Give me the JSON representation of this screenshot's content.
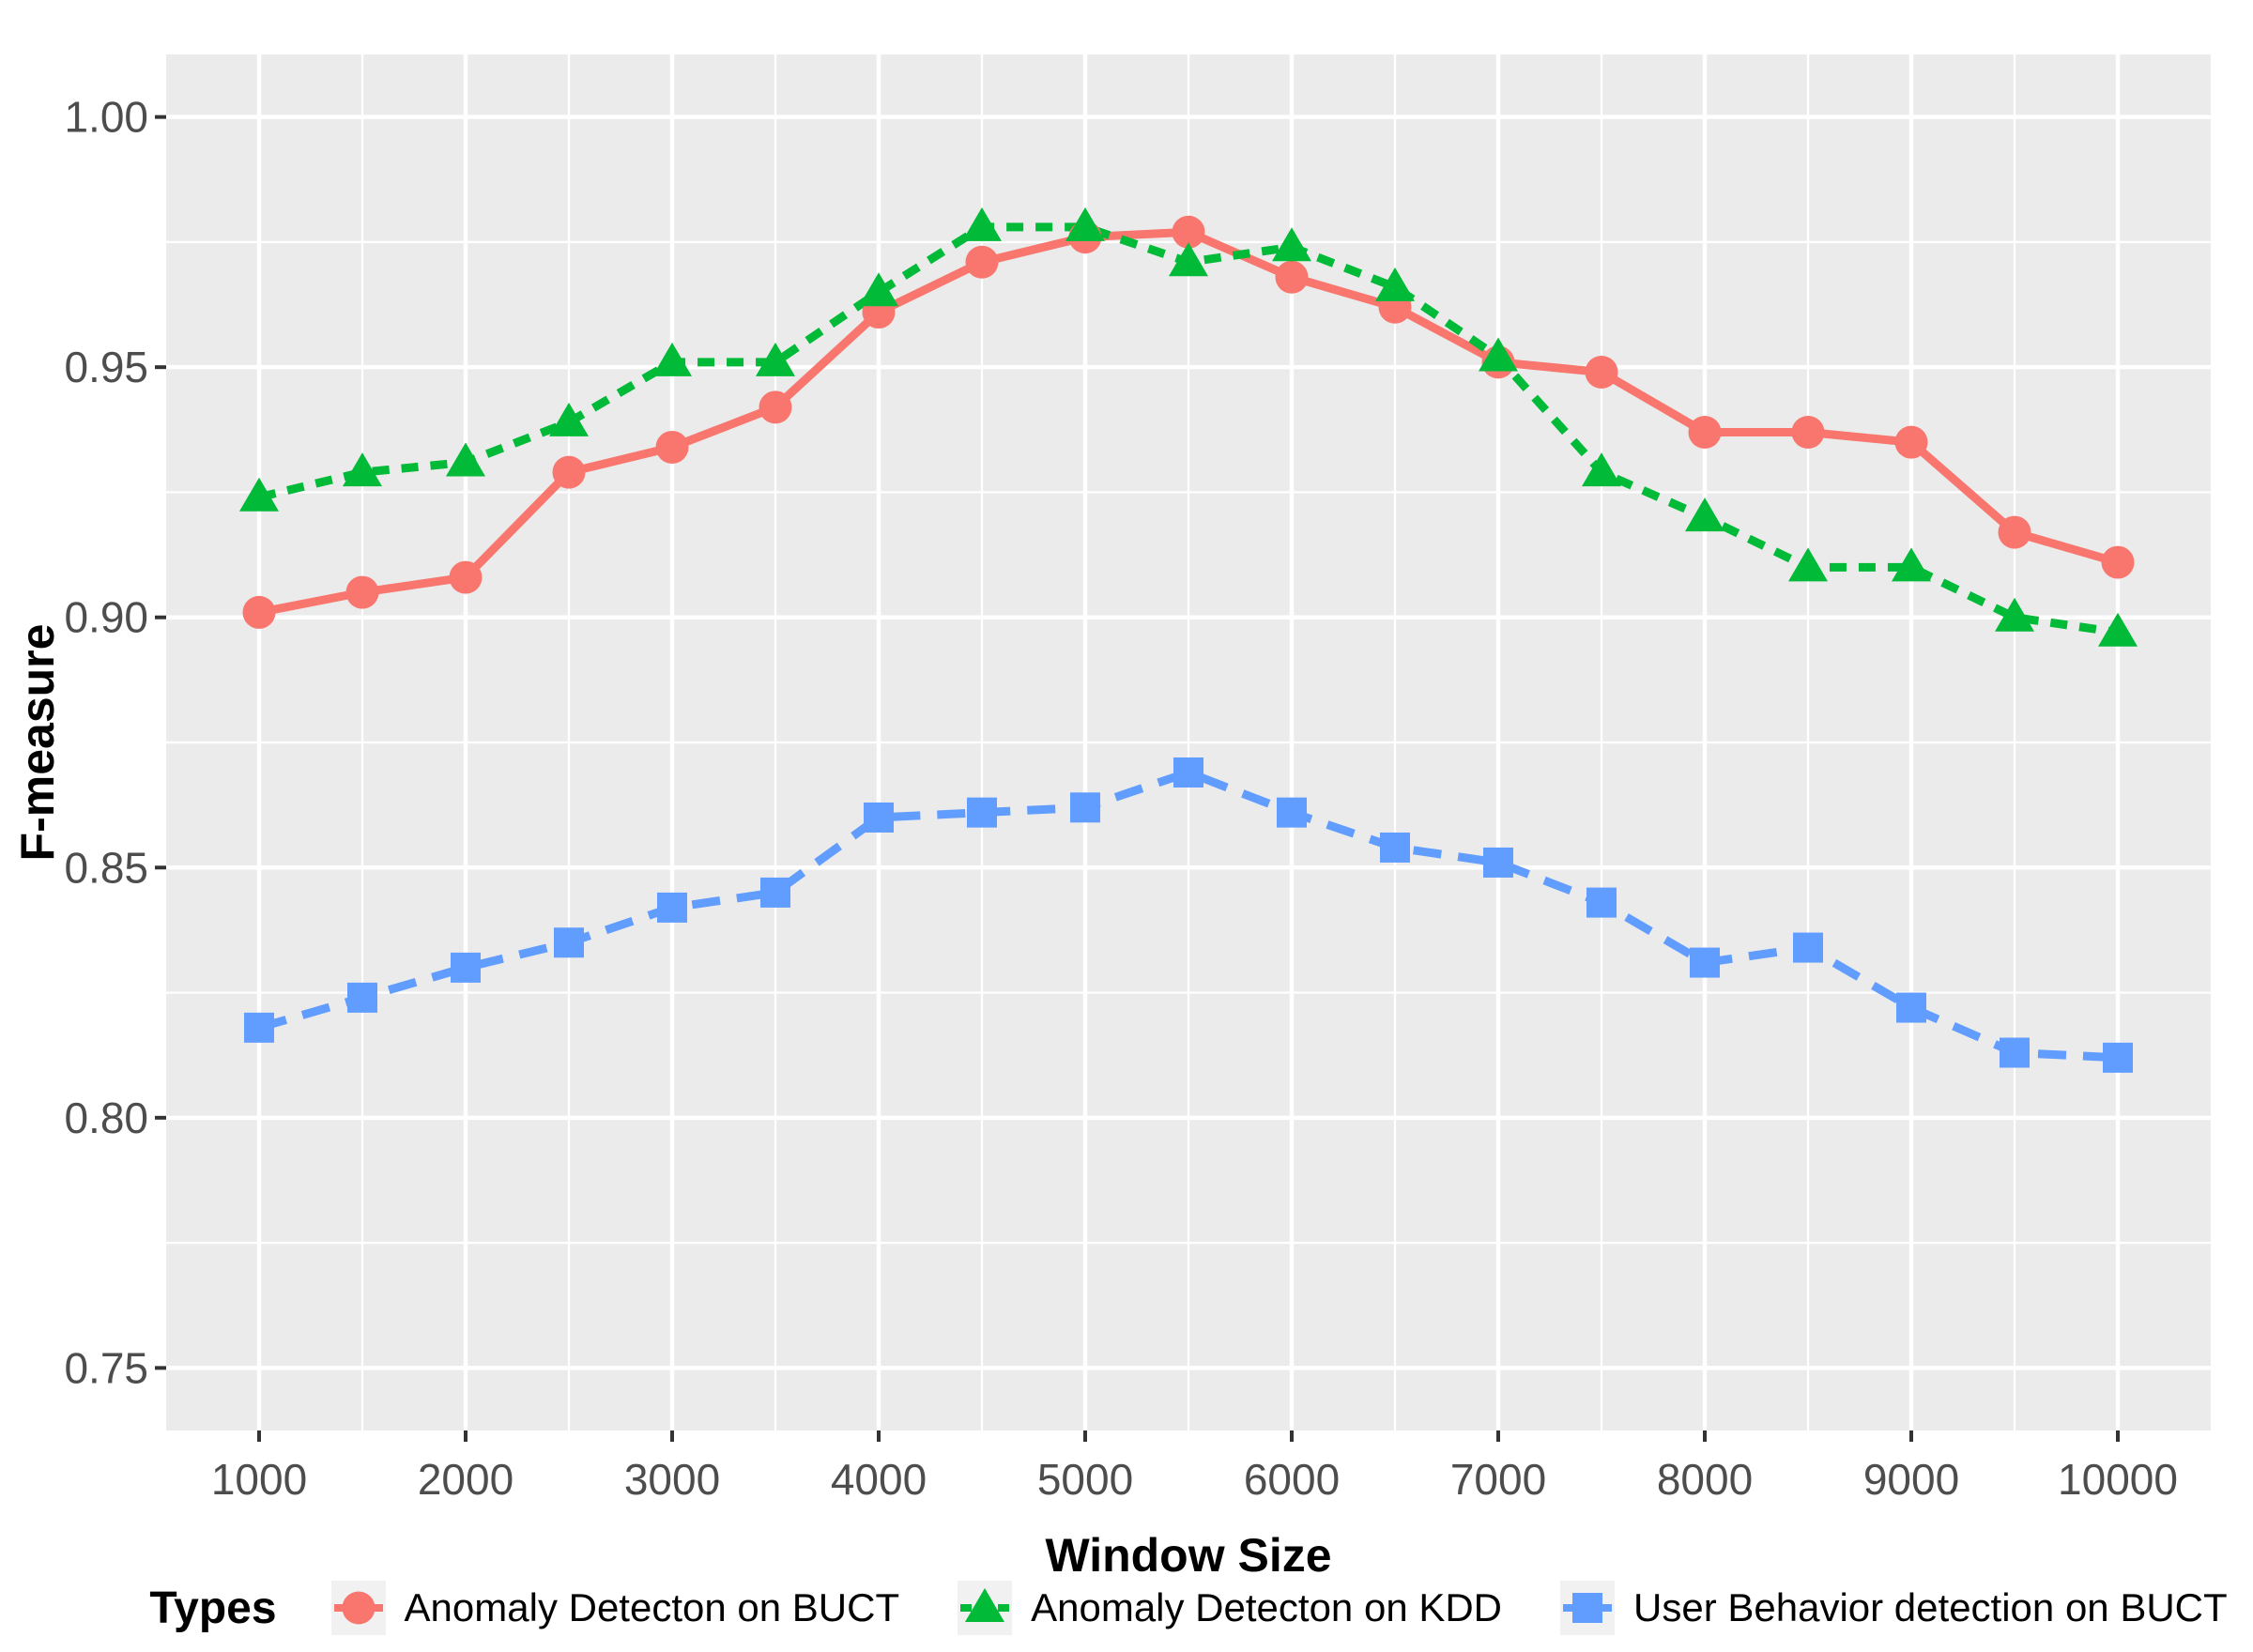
{
  "figure": {
    "x_axis": {
      "title": "Window Size",
      "tick_labels": [
        "1000",
        "2000",
        "3000",
        "4000",
        "5000",
        "6000",
        "7000",
        "8000",
        "9000",
        "10000"
      ],
      "tick_values": [
        1000,
        2000,
        3000,
        4000,
        5000,
        6000,
        7000,
        8000,
        9000,
        10000
      ],
      "minor_tick_values": [
        1500,
        2500,
        3500,
        4500,
        5500,
        6500,
        7500,
        8500,
        9500
      ]
    },
    "y_axis": {
      "title": "F-measure",
      "tick_labels": [
        "0.75",
        "0.80",
        "0.85",
        "0.90",
        "0.95",
        "1.00"
      ],
      "tick_values": [
        0.75,
        0.8,
        0.85,
        0.9,
        0.95,
        1.0
      ],
      "minor_tick_values": [
        0.775,
        0.825,
        0.875,
        0.925,
        0.975
      ]
    },
    "legend": {
      "title": "Types",
      "entries": [
        "Anomaly Detecton on BUCT",
        "Anomaly Detecton on KDD",
        "User Behavior detection on BUCT"
      ]
    }
  },
  "chart_data": {
    "type": "line",
    "title": "",
    "xlabel": "Window Size",
    "ylabel": "F-measure",
    "x": [
      1000,
      1500,
      2000,
      2500,
      3000,
      3500,
      4000,
      4500,
      5000,
      5500,
      6000,
      6500,
      7000,
      7500,
      8000,
      8500,
      9000,
      9500,
      10000
    ],
    "series": [
      {
        "name": "Anomaly Detecton on BUCT",
        "color": "#F8766D",
        "marker": "circle",
        "linetype": "solid",
        "values": [
          0.901,
          0.905,
          0.908,
          0.929,
          0.934,
          0.942,
          0.961,
          0.971,
          0.976,
          0.977,
          0.968,
          0.962,
          0.951,
          0.949,
          0.937,
          0.937,
          0.935,
          0.917,
          0.911
        ]
      },
      {
        "name": "Anomaly Detecton on KDD",
        "color": "#00BA38",
        "marker": "triangle",
        "linetype": "dashed",
        "values": [
          0.924,
          0.929,
          0.931,
          0.939,
          0.951,
          0.951,
          0.965,
          0.978,
          0.978,
          0.971,
          0.974,
          0.966,
          0.952,
          0.929,
          0.92,
          0.91,
          0.91,
          0.9,
          0.897
        ]
      },
      {
        "name": "User Behavior detection on BUCT",
        "color": "#619CFF",
        "marker": "square",
        "linetype": "longdash",
        "values": [
          0.818,
          0.824,
          0.83,
          0.835,
          0.842,
          0.845,
          0.86,
          0.861,
          0.862,
          0.869,
          0.861,
          0.854,
          0.851,
          0.843,
          0.831,
          0.834,
          0.822,
          0.813,
          0.812
        ]
      }
    ],
    "xlim": [
      550,
      10450
    ],
    "ylim": [
      0.7375,
      1.0125
    ],
    "grid": true,
    "legend_position": "bottom",
    "panel_bg": "#EBEBEB",
    "grid_color": "#FFFFFF",
    "tick_text_color": "#4D4D4D",
    "tick_mark_color": "#333333",
    "legend_key_bg": "#F1F1F1"
  }
}
